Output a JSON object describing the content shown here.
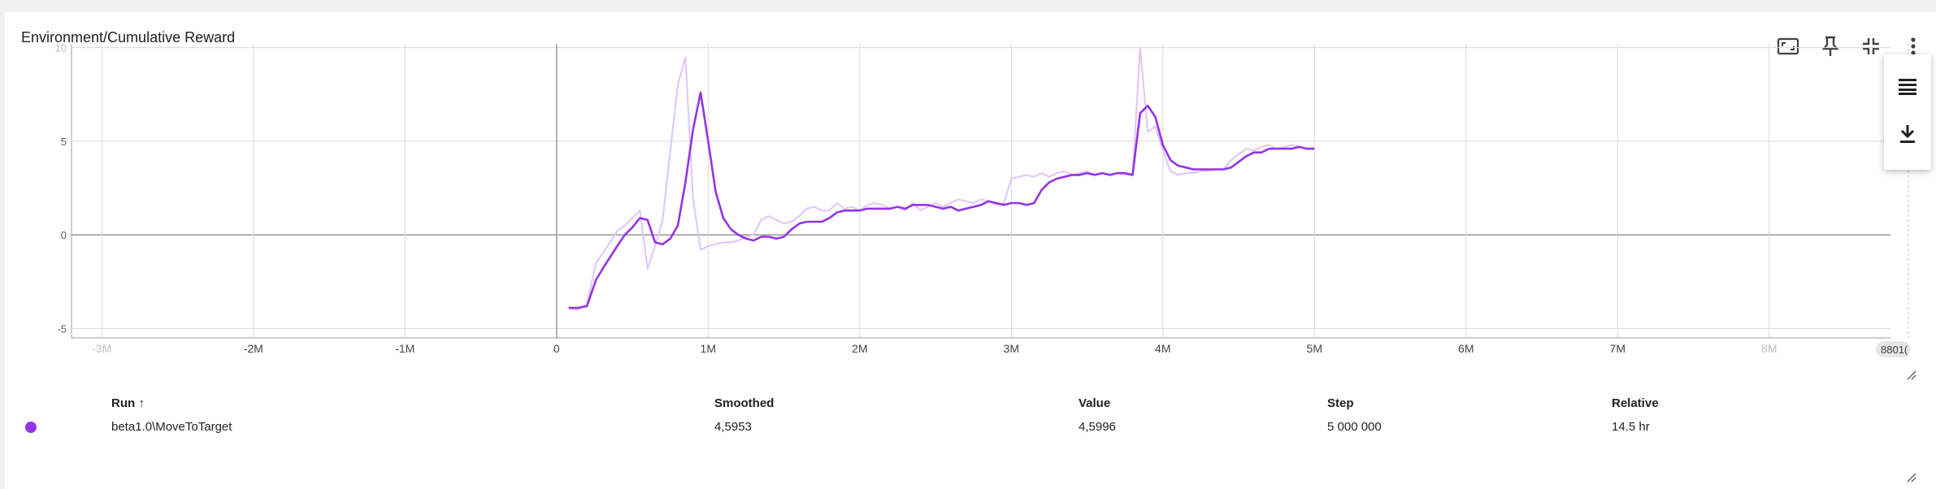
{
  "card": {
    "title": "Environment/Cumulative Reward"
  },
  "toolbar": [
    "fullscreen-icon",
    "pin-icon",
    "collapse-icon",
    "more-vert-icon"
  ],
  "side_menu": [
    "table-rows-icon",
    "download-icon"
  ],
  "colors": {
    "accent": "#9334e6",
    "raw_series": "#e1c4f8",
    "grid": "#dadada",
    "axis": "#9e9e9e"
  },
  "chart_data": {
    "type": "line",
    "title": "",
    "xlabel": "",
    "ylabel": "",
    "xlim": [
      -3200000,
      8800190
    ],
    "ylim": [
      -5.5,
      10.2
    ],
    "grid": true,
    "xticks": [
      {
        "v": -3000000,
        "label": "-3M",
        "faded": true
      },
      {
        "v": -2000000,
        "label": "-2M"
      },
      {
        "v": -1000000,
        "label": "-1M"
      },
      {
        "v": 0,
        "label": "0"
      },
      {
        "v": 1000000,
        "label": "1M"
      },
      {
        "v": 2000000,
        "label": "2M"
      },
      {
        "v": 3000000,
        "label": "3M"
      },
      {
        "v": 4000000,
        "label": "4M"
      },
      {
        "v": 5000000,
        "label": "5M"
      },
      {
        "v": 6000000,
        "label": "6M"
      },
      {
        "v": 7000000,
        "label": "7M"
      },
      {
        "v": 8000000,
        "label": "8M",
        "faded": true
      }
    ],
    "xmax_label": "8801(",
    "yticks": [
      {
        "v": 10,
        "label": "10",
        "faded": true
      },
      {
        "v": 5,
        "label": "5"
      },
      {
        "v": 0,
        "label": "0"
      },
      {
        "v": -5,
        "label": "-5"
      }
    ],
    "x": [
      80000,
      140000,
      200000,
      260000,
      320000,
      400000,
      450000,
      500000,
      550000,
      600000,
      650000,
      700000,
      750000,
      800000,
      850000,
      900000,
      950000,
      1000000,
      1050000,
      1100000,
      1150000,
      1200000,
      1250000,
      1300000,
      1350000,
      1400000,
      1450000,
      1500000,
      1550000,
      1600000,
      1650000,
      1700000,
      1750000,
      1800000,
      1850000,
      1900000,
      1950000,
      2000000,
      2050000,
      2100000,
      2150000,
      2200000,
      2250000,
      2300000,
      2350000,
      2400000,
      2450000,
      2500000,
      2550000,
      2600000,
      2650000,
      2700000,
      2750000,
      2800000,
      2850000,
      2900000,
      2950000,
      3000000,
      3050000,
      3100000,
      3150000,
      3200000,
      3250000,
      3300000,
      3350000,
      3400000,
      3450000,
      3500000,
      3550000,
      3600000,
      3650000,
      3700000,
      3750000,
      3800000,
      3850000,
      3900000,
      3950000,
      4000000,
      4050000,
      4100000,
      4150000,
      4200000,
      4250000,
      4300000,
      4350000,
      4400000,
      4450000,
      4500000,
      4550000,
      4600000,
      4650000,
      4700000,
      4750000,
      4800000,
      4850000,
      4900000,
      4950000,
      5000000
    ],
    "series": [
      {
        "name": "beta1.0\\MoveToTarget",
        "role": "raw",
        "values": [
          -3.9,
          -4.0,
          -3.7,
          -1.5,
          -0.8,
          0.2,
          0.5,
          0.9,
          1.3,
          -1.8,
          -0.6,
          0.8,
          4.5,
          8.0,
          9.5,
          2.0,
          -0.8,
          -0.6,
          -0.5,
          -0.4,
          -0.4,
          -0.3,
          -0.1,
          0.0,
          0.8,
          1.0,
          0.8,
          0.6,
          0.7,
          1.0,
          1.4,
          1.5,
          1.3,
          1.3,
          1.7,
          1.4,
          1.5,
          1.3,
          1.6,
          1.7,
          1.6,
          1.4,
          1.5,
          1.3,
          1.7,
          1.3,
          1.5,
          1.7,
          1.5,
          1.7,
          1.9,
          1.8,
          1.7,
          1.9,
          1.8,
          1.6,
          1.7,
          3.0,
          3.1,
          3.2,
          3.1,
          3.3,
          3.1,
          3.3,
          3.4,
          3.2,
          3.3,
          3.4,
          3.2,
          3.3,
          3.2,
          3.3,
          3.2,
          3.2,
          10.0,
          5.5,
          5.8,
          4.5,
          3.4,
          3.2,
          3.3,
          3.3,
          3.4,
          3.4,
          3.5,
          3.5,
          4.0,
          4.3,
          4.6,
          4.5,
          4.7,
          4.8,
          4.6,
          4.7,
          4.8,
          4.7,
          4.6,
          4.6
        ]
      },
      {
        "name": "beta1.0\\MoveToTarget",
        "role": "smoothed",
        "values": [
          -3.9,
          -3.9,
          -3.8,
          -2.4,
          -1.6,
          -0.6,
          0.0,
          0.4,
          0.9,
          0.8,
          -0.4,
          -0.5,
          -0.2,
          0.5,
          2.8,
          5.6,
          7.6,
          5.0,
          2.3,
          0.9,
          0.3,
          0.0,
          -0.2,
          -0.3,
          -0.1,
          -0.1,
          -0.2,
          -0.1,
          0.3,
          0.6,
          0.7,
          0.7,
          0.7,
          0.9,
          1.2,
          1.3,
          1.3,
          1.3,
          1.4,
          1.4,
          1.4,
          1.4,
          1.5,
          1.4,
          1.6,
          1.6,
          1.6,
          1.5,
          1.4,
          1.5,
          1.3,
          1.4,
          1.5,
          1.6,
          1.8,
          1.7,
          1.6,
          1.7,
          1.7,
          1.6,
          1.7,
          2.4,
          2.8,
          3.0,
          3.1,
          3.2,
          3.2,
          3.3,
          3.2,
          3.3,
          3.2,
          3.3,
          3.3,
          3.2,
          6.5,
          6.9,
          6.3,
          4.8,
          4.0,
          3.7,
          3.6,
          3.5,
          3.5,
          3.5,
          3.5,
          3.5,
          3.6,
          3.9,
          4.2,
          4.4,
          4.4,
          4.6,
          4.6,
          4.6,
          4.6,
          4.7,
          4.6,
          4.6
        ]
      }
    ]
  },
  "table": {
    "headers": {
      "run": "Run ↑",
      "smoothed": "Smoothed",
      "value": "Value",
      "step": "Step",
      "relative": "Relative"
    },
    "rows": [
      {
        "run": "beta1.0\\MoveToTarget",
        "smoothed": "4,5953",
        "value": "4,5996",
        "step": "5 000 000",
        "relative": "14.5 hr",
        "color": "#9334e6"
      }
    ]
  }
}
